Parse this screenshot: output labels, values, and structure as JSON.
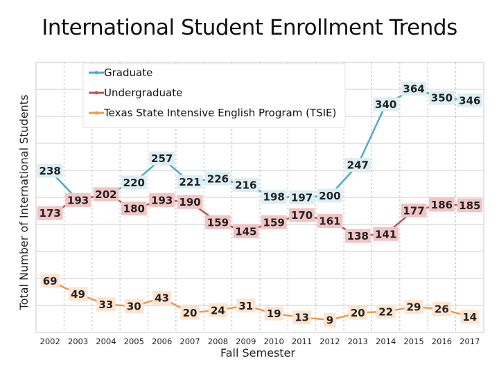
{
  "chart_data": {
    "type": "line",
    "title": "International Student Enrollment Trends",
    "xlabel": "Fall Semester",
    "ylabel": "Total Number of International Students",
    "categories": [
      "2002",
      "2003",
      "2004",
      "2005",
      "2006",
      "2007",
      "2008",
      "2009",
      "2010",
      "2011",
      "2012",
      "2013",
      "2014",
      "2015",
      "2016",
      "2017"
    ],
    "ylim": [
      0,
      400
    ],
    "grid": true,
    "legend_position": "top-left",
    "series": [
      {
        "name": "Graduate",
        "color": "#4bacc6",
        "label_bg": "#dbeef4",
        "values": [
          238,
          193,
          202,
          220,
          257,
          221,
          226,
          216,
          198,
          197,
          200,
          247,
          340,
          364,
          350,
          346
        ]
      },
      {
        "name": "Undergraduate",
        "color": "#c0504d",
        "label_bg": "#f2c4c4",
        "values": [
          173,
          193,
          202,
          180,
          193,
          190,
          159,
          145,
          159,
          170,
          161,
          138,
          141,
          177,
          186,
          185
        ]
      },
      {
        "name": "Texas State Intensive English Program (TSIE)",
        "color": "#f79646",
        "label_bg": "#fde4d0",
        "values": [
          69,
          49,
          33,
          30,
          43,
          20,
          24,
          31,
          19,
          13,
          9,
          20,
          22,
          29,
          26,
          14
        ]
      }
    ]
  }
}
